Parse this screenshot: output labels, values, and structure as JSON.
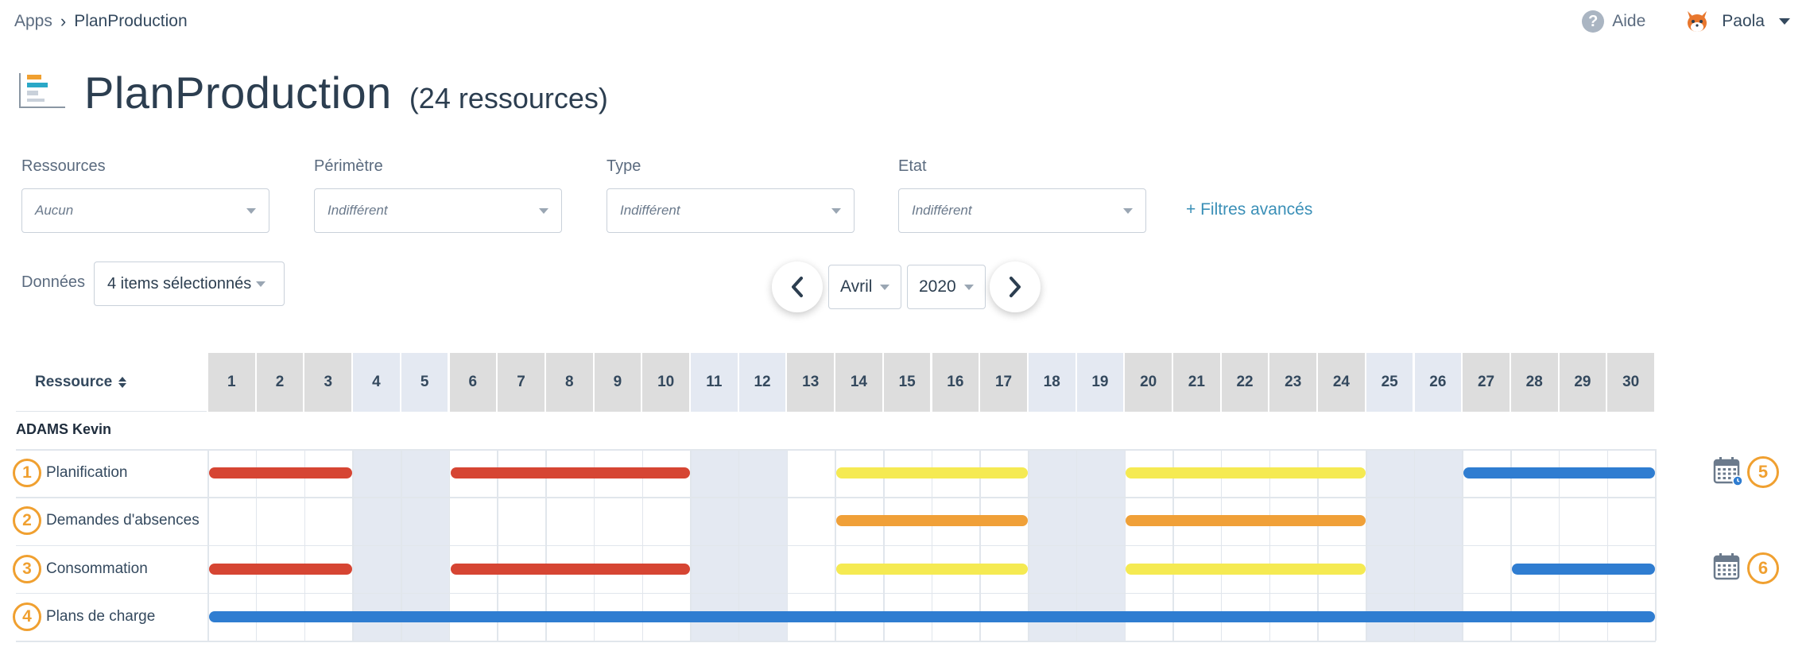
{
  "breadcrumb": {
    "root": "Apps",
    "current": "PlanProduction"
  },
  "header": {
    "help_label": "Aide",
    "user_name": "Paola"
  },
  "title": {
    "text": "PlanProduction",
    "count": "(24 ressources)"
  },
  "filters": [
    {
      "label": "Ressources",
      "value": "Aucun"
    },
    {
      "label": "Périmètre",
      "value": "Indifférent"
    },
    {
      "label": "Type",
      "value": "Indifférent"
    },
    {
      "label": "Etat",
      "value": "Indifférent"
    }
  ],
  "advanced_filters_label": "+ Filtres avancés",
  "donnees": {
    "label": "Données",
    "value": "4 items sélectionnés"
  },
  "period": {
    "month": "Avril",
    "year": "2020"
  },
  "grid": {
    "resource_header": "Ressource",
    "days": [
      "1",
      "2",
      "3",
      "4",
      "5",
      "6",
      "7",
      "8",
      "9",
      "10",
      "11",
      "12",
      "13",
      "14",
      "15",
      "16",
      "17",
      "18",
      "19",
      "20",
      "21",
      "22",
      "23",
      "24",
      "25",
      "26",
      "27",
      "28",
      "29",
      "30"
    ],
    "weekend_days": [
      4,
      5,
      11,
      12,
      18,
      19,
      25,
      26
    ],
    "holiday_days": [
      13
    ]
  },
  "person": {
    "name": "ADAMS Kevin"
  },
  "rows": [
    {
      "badge": "1",
      "label": "Planification",
      "bars": [
        {
          "start": 1,
          "end": 3,
          "color": "#d64533"
        },
        {
          "start": 6,
          "end": 10,
          "color": "#d64533"
        },
        {
          "start": 14,
          "end": 17,
          "color": "#f5ea52"
        },
        {
          "start": 20,
          "end": 24,
          "color": "#f5ea52"
        },
        {
          "start": 27,
          "end": 30,
          "color": "#2f7dd1"
        }
      ]
    },
    {
      "badge": "2",
      "label": "Demandes d'absences",
      "bars": [
        {
          "start": 14,
          "end": 17,
          "color": "#f0a038"
        },
        {
          "start": 20,
          "end": 24,
          "color": "#f0a038"
        }
      ]
    },
    {
      "badge": "3",
      "label": "Consommation",
      "bars": [
        {
          "start": 1,
          "end": 3,
          "color": "#d64533"
        },
        {
          "start": 6,
          "end": 10,
          "color": "#d64533"
        },
        {
          "start": 14,
          "end": 17,
          "color": "#f5ea52"
        },
        {
          "start": 20,
          "end": 24,
          "color": "#f5ea52"
        },
        {
          "start": 28,
          "end": 30,
          "color": "#2f7dd1"
        }
      ]
    },
    {
      "badge": "4",
      "label": "Plans de charge",
      "bars": [
        {
          "start": 1,
          "end": 30,
          "color": "#2f7dd1"
        }
      ]
    }
  ],
  "side_actions": [
    {
      "badge": "5",
      "icon": "calendar-clock-icon"
    },
    {
      "badge": "6",
      "icon": "calendar-icon"
    }
  ],
  "colors": {
    "weekend": "#e4e9f2",
    "weekday_header": "#dddddd",
    "weekend_header": "#e4e9f2",
    "accent": "#f0a030",
    "link": "#3a8fb7"
  }
}
